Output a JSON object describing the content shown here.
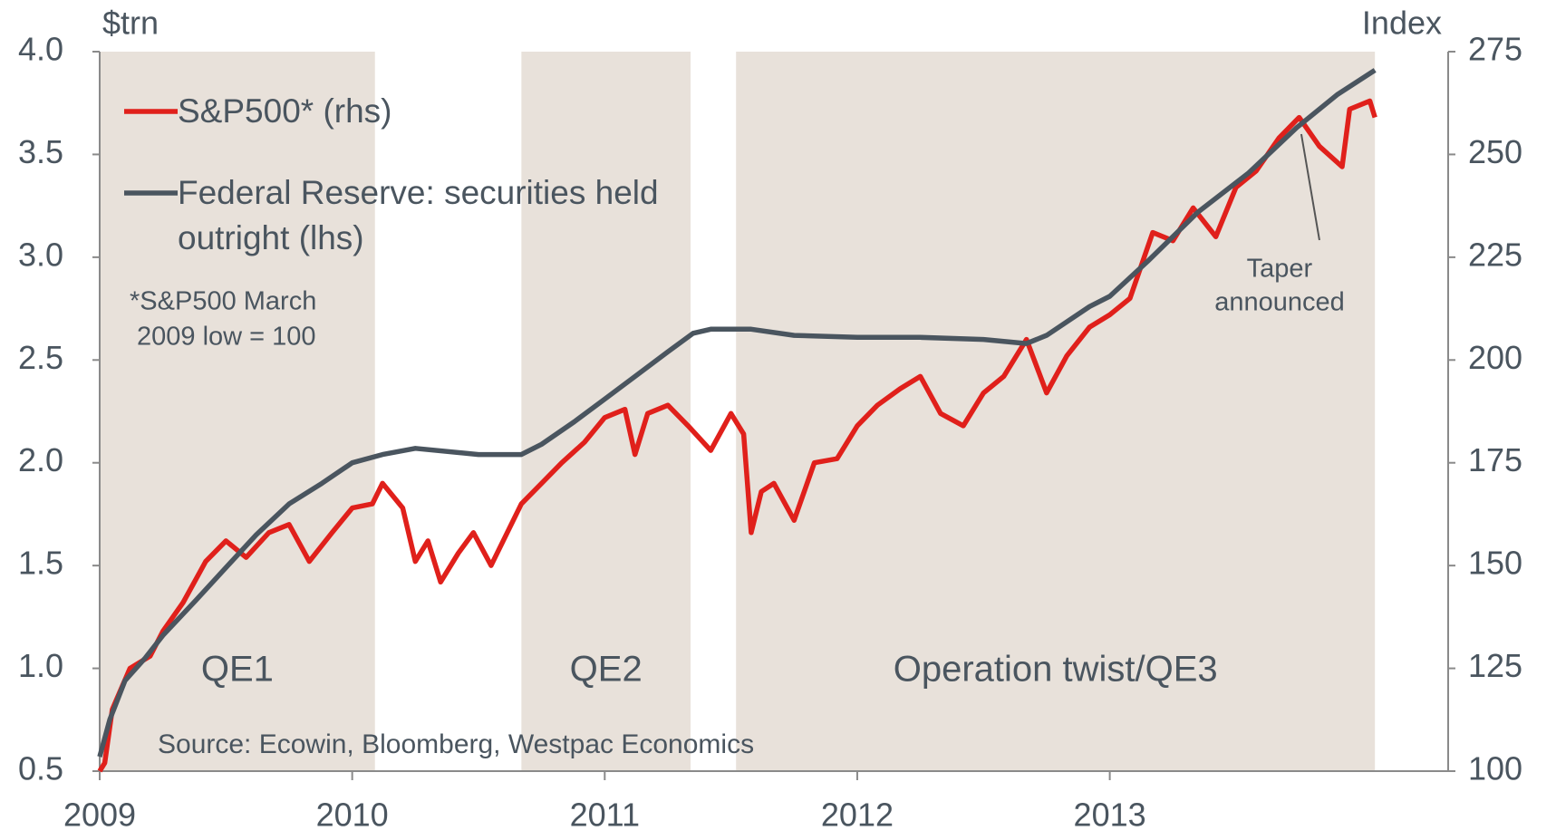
{
  "chart_data": {
    "type": "line",
    "y_label": "$trn",
    "y2_label": "Index",
    "xlim": [
      2009,
      2014.34
    ],
    "xticks": [
      2009,
      2010,
      2011,
      2012,
      2013
    ],
    "ylim": [
      0.5,
      4.0
    ],
    "yticks": [
      0.5,
      {
        "value": 1,
        "label": "1.0"
      },
      1.5,
      {
        "value": 2,
        "label": "2.0"
      },
      2.5,
      {
        "value": 3,
        "label": "3.0"
      },
      3.5,
      {
        "value": 4,
        "label": "4.0"
      }
    ],
    "y2lim": [
      100,
      275
    ],
    "y2ticks": [
      100,
      125,
      150,
      175,
      200,
      225,
      250,
      275
    ],
    "periods": [
      {
        "label": "QE1",
        "start": 2009,
        "end": 2010.09,
        "color": "#e8e1da"
      },
      {
        "label": "QE2",
        "start": 2010.67,
        "end": 2011.34,
        "color": "#e8e1da"
      },
      {
        "label": "Operation twist/QE3",
        "start": 2011.52,
        "end": 2014.05,
        "color": "#e8e1da"
      }
    ],
    "series": [
      {
        "name": "S&P500* (rhs)",
        "color": "#e0201b",
        "axis": "y2",
        "x": [
          2009,
          2009.02,
          2009.05,
          2009.12,
          2009.2,
          2009.25,
          2009.33,
          2009.42,
          2009.5,
          2009.58,
          2009.67,
          2009.75,
          2009.83,
          2009.92,
          2010,
          2010.08,
          2010.12,
          2010.2,
          2010.25,
          2010.3,
          2010.35,
          2010.42,
          2010.48,
          2010.55,
          2010.67,
          2010.75,
          2010.83,
          2010.92,
          2011,
          2011.08,
          2011.12,
          2011.17,
          2011.25,
          2011.33,
          2011.42,
          2011.5,
          2011.55,
          2011.58,
          2011.62,
          2011.67,
          2011.75,
          2011.83,
          2011.92,
          2012,
          2012.08,
          2012.17,
          2012.25,
          2012.33,
          2012.42,
          2012.5,
          2012.58,
          2012.67,
          2012.75,
          2012.83,
          2012.92,
          2013,
          2013.08,
          2013.17,
          2013.25,
          2013.33,
          2013.42,
          2013.5,
          2013.58,
          2013.67,
          2013.75,
          2013.83,
          2013.92,
          2013.95,
          2014.03,
          2014.05
        ],
        "values": [
          100,
          102,
          115,
          125,
          128,
          134,
          141,
          151,
          156,
          152,
          158,
          160,
          151,
          158,
          164,
          165,
          170,
          164,
          151,
          156,
          146,
          153,
          158,
          150,
          165,
          170,
          175,
          180,
          186,
          188,
          177,
          187,
          189,
          184,
          178,
          187,
          182,
          158,
          168,
          170,
          161,
          175,
          176,
          184,
          189,
          193,
          196,
          187,
          184,
          192,
          196,
          205,
          192,
          201,
          208,
          211,
          215,
          231,
          229,
          237,
          230,
          242,
          246,
          254,
          259,
          252,
          247,
          261,
          263,
          259
        ]
      },
      {
        "name": "Federal Reserve: securities held outright (lhs)",
        "color": "#4a555f",
        "x": [
          2009,
          2009.04,
          2009.1,
          2009.18,
          2009.25,
          2009.38,
          2009.5,
          2009.62,
          2009.75,
          2009.88,
          2010,
          2010.12,
          2010.25,
          2010.5,
          2010.67,
          2010.75,
          2010.88,
          2011,
          2011.12,
          2011.25,
          2011.35,
          2011.42,
          2011.58,
          2011.75,
          2012,
          2012.25,
          2012.5,
          2012.67,
          2012.75,
          2012.92,
          2013,
          2013.15,
          2013.35,
          2013.55,
          2013.74,
          2013.9,
          2014.05
        ],
        "values": [
          0.57,
          0.75,
          0.94,
          1.05,
          1.16,
          1.33,
          1.49,
          1.65,
          1.8,
          1.9,
          2.0,
          2.04,
          2.07,
          2.04,
          2.04,
          2.09,
          2.2,
          2.31,
          2.42,
          2.54,
          2.63,
          2.65,
          2.65,
          2.62,
          2.61,
          2.61,
          2.6,
          2.58,
          2.62,
          2.76,
          2.81,
          2.98,
          3.22,
          3.41,
          3.63,
          3.79,
          3.91
        ]
      }
    ],
    "note": [
      "*S&P500 March",
      "2009  low = 100"
    ],
    "annotation": {
      "lines": [
        "Taper",
        "announced"
      ],
      "x": 2013.78
    },
    "source": "Source: Ecowin, Bloomberg, Westpac Economics"
  }
}
